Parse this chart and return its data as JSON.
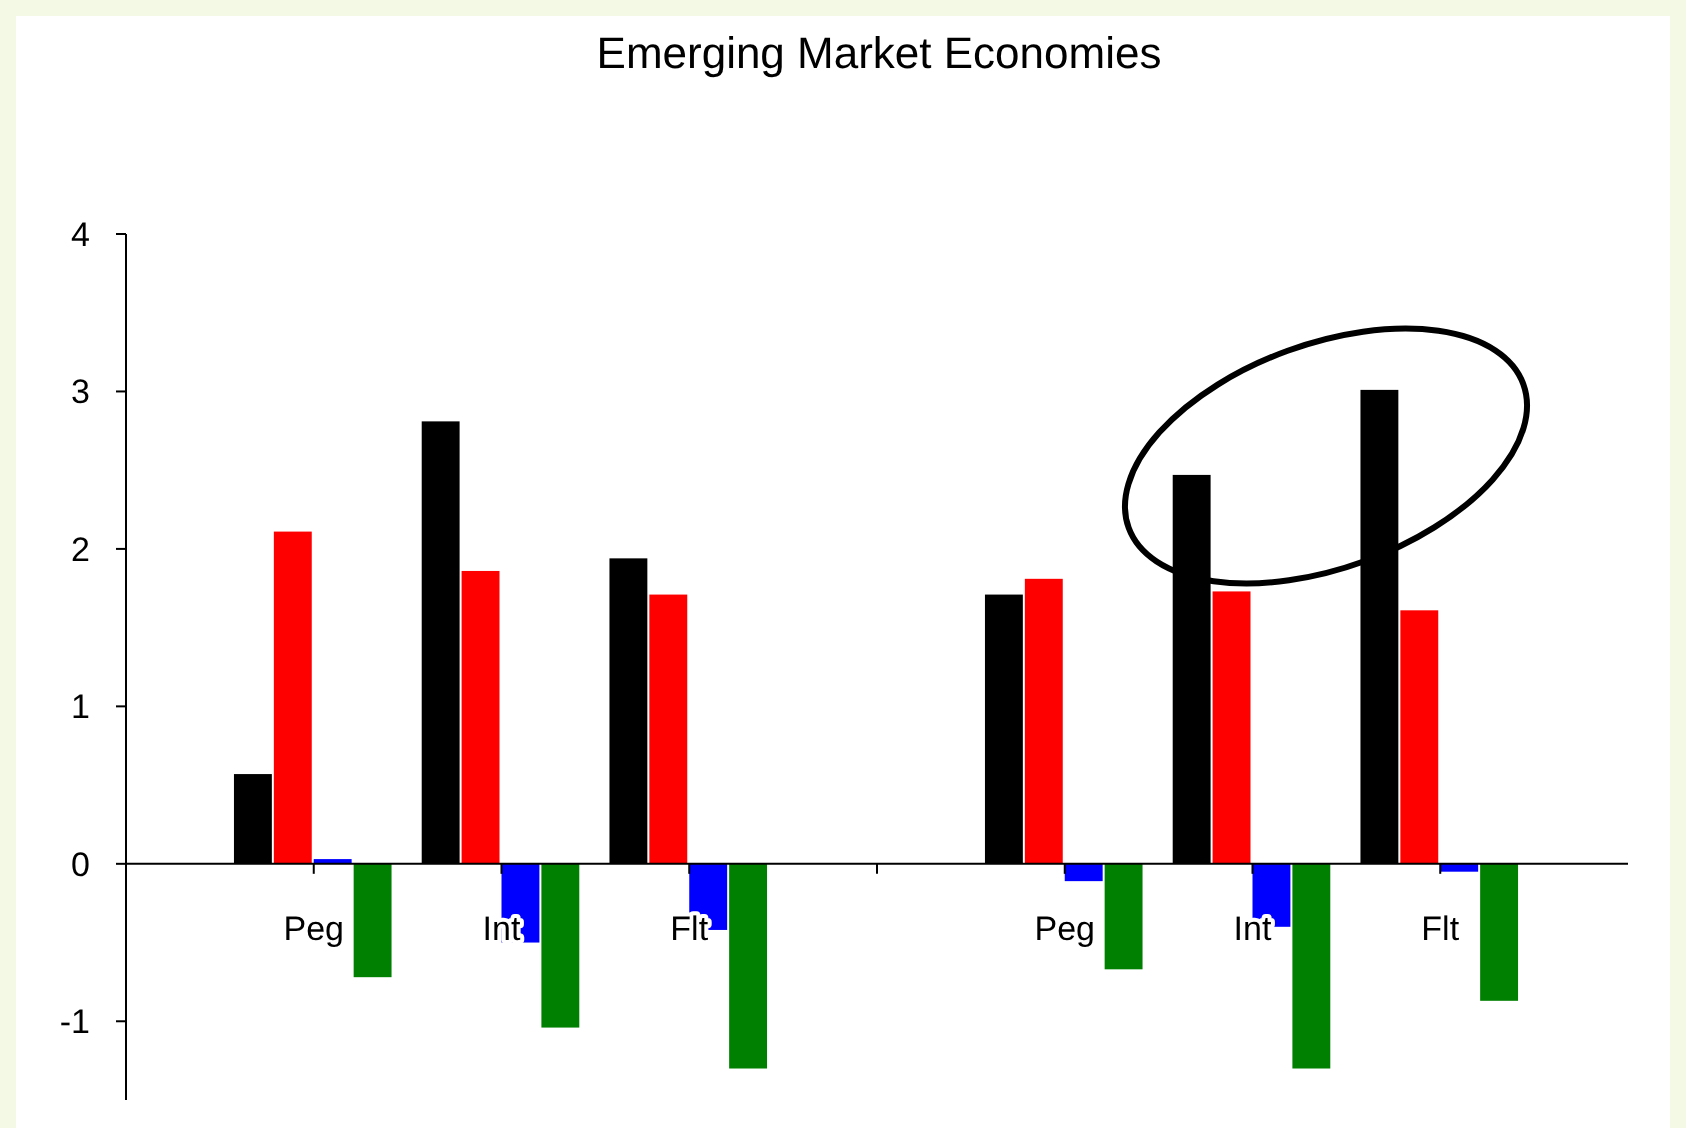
{
  "chart_data": {
    "type": "bar",
    "title": "Emerging Market Economies",
    "categories": [
      "Peg",
      "Int",
      "Flt",
      null,
      "Peg",
      "Int",
      "Flt"
    ],
    "series": [
      {
        "color": "#000000",
        "values": [
          0.57,
          2.81,
          1.94,
          null,
          1.71,
          2.47,
          3.01
        ]
      },
      {
        "color": "#ff0000",
        "values": [
          2.11,
          1.86,
          1.71,
          null,
          1.81,
          1.73,
          1.61
        ]
      },
      {
        "color": "#0000ff",
        "values": [
          0.03,
          -0.5,
          -0.42,
          null,
          -0.11,
          -0.4,
          -0.05
        ]
      },
      {
        "color": "#008000",
        "values": [
          -0.72,
          -1.04,
          -1.3,
          null,
          -0.67,
          -1.3,
          -0.87
        ]
      }
    ],
    "ylim": [
      -1.5,
      4
    ],
    "yticks": [
      -1,
      0,
      1,
      2,
      3,
      4
    ],
    "grid": false
  }
}
